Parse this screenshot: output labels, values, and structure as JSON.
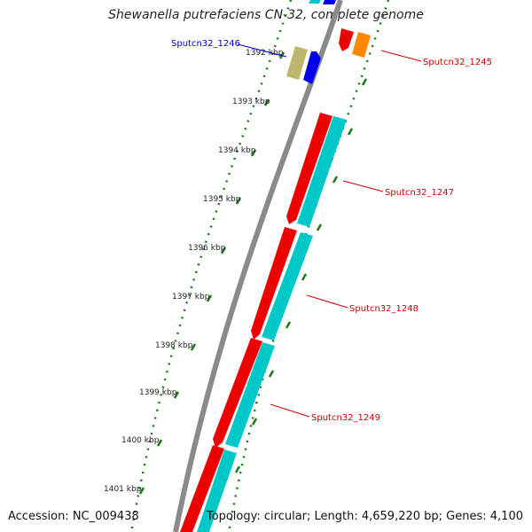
{
  "title": "Shewanella putrefaciens CN-32, complete genome",
  "footer": {
    "accession": "Accession: NC_009438",
    "topology": "Topology: circular; Length: 4,659,220 bp; Genes: 4,100"
  },
  "ruler": {
    "tick_labels": [
      "1392 kbp",
      "1393 kbp",
      "1394 kbp",
      "1395 kbp",
      "1396 kbp",
      "1397 kbp",
      "1398 kbp",
      "1399 kbp",
      "1400 kbp",
      "1401 kbp"
    ],
    "tick_color": "#1a7a1a"
  },
  "genes": [
    {
      "id": "Sputcn32_1246",
      "strand": "minus",
      "color": "#0000ee",
      "label_color": "#0000cc"
    },
    {
      "id": "Sputcn32_1245",
      "strand": "plus",
      "color": "#ee0000",
      "label_color": "#cc0000"
    },
    {
      "id": "Sputcn32_1247",
      "strand": "plus",
      "color": "#ee0000",
      "label_color": "#cc0000"
    },
    {
      "id": "Sputcn32_1248",
      "strand": "plus",
      "color": "#ee0000",
      "label_color": "#cc0000"
    },
    {
      "id": "Sputcn32_1249",
      "strand": "plus",
      "color": "#ee0000",
      "label_color": "#cc0000"
    }
  ],
  "colors": {
    "backbone": "#8a8a8a",
    "cds_forward": "#ee0000",
    "cds_reverse": "#0000ee",
    "rna_track": "#00c8c8",
    "orange_feature": "#ff8800",
    "khaki_feature": "#bdb76b"
  }
}
